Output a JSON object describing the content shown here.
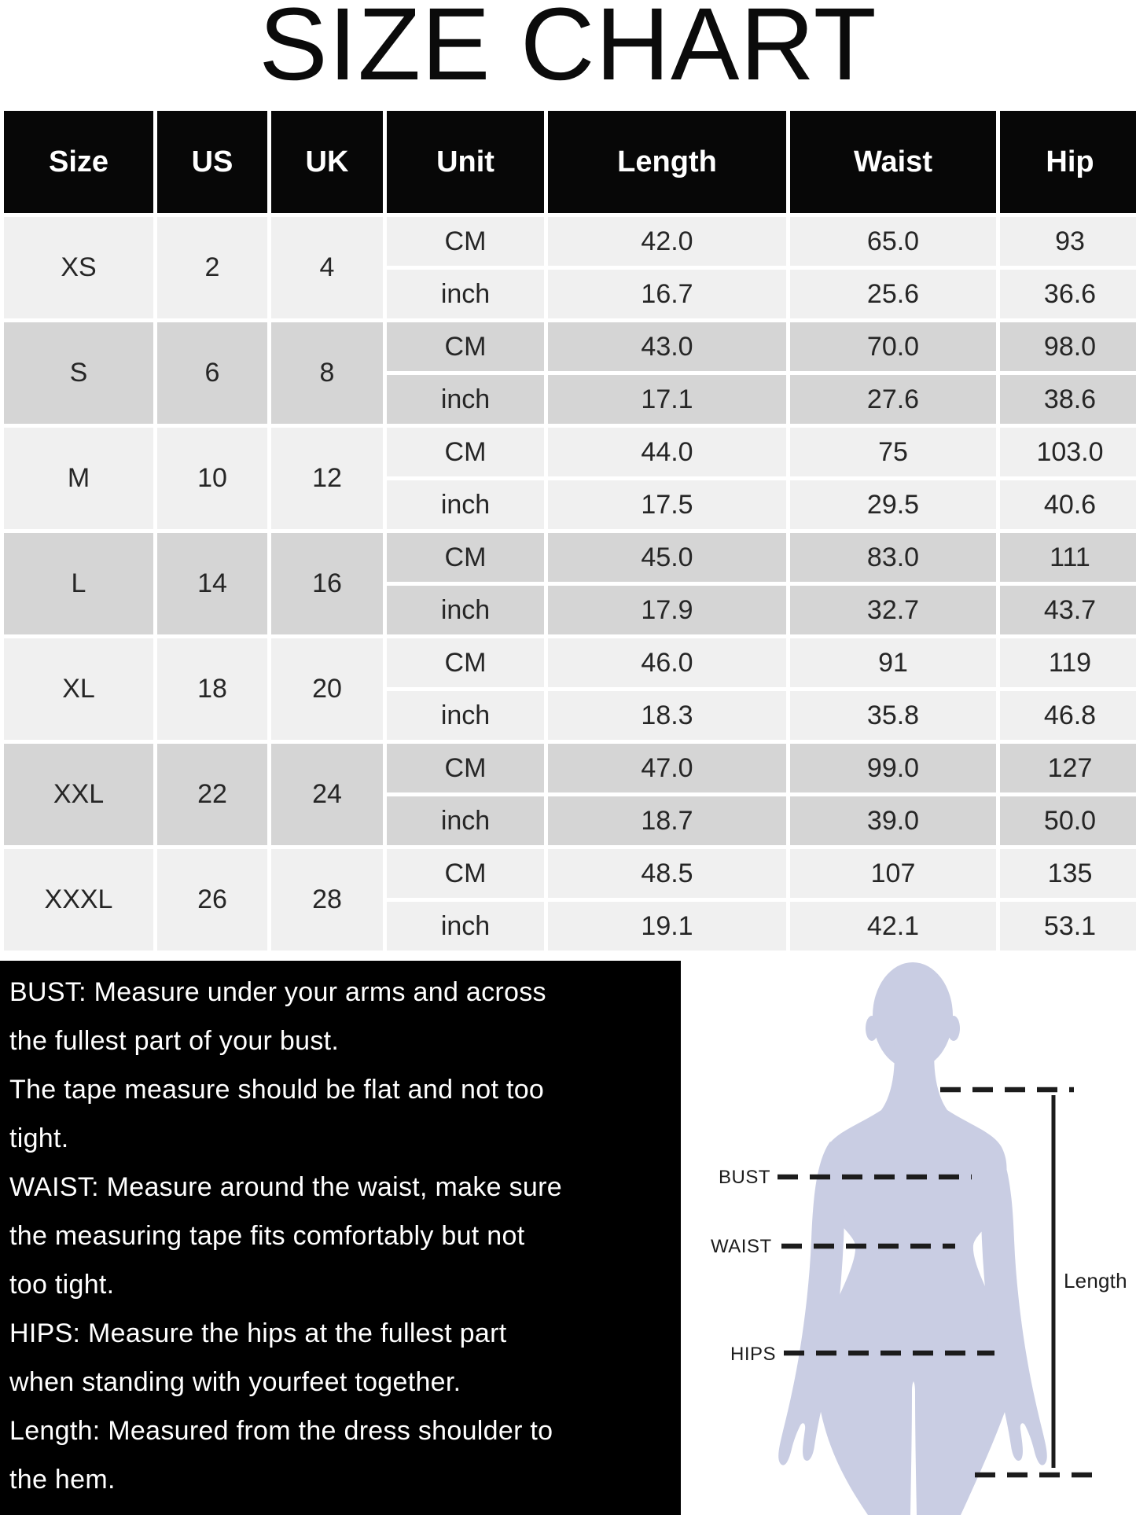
{
  "title": "SIZE CHART",
  "chart_data": {
    "type": "table",
    "title": "SIZE CHART",
    "columns": [
      "Size",
      "US",
      "UK",
      "Unit",
      "Length",
      "Waist",
      "Hip"
    ],
    "sizes": [
      {
        "size": "XS",
        "us": "2",
        "uk": "4",
        "measurements": [
          {
            "unit": "CM",
            "length": "42.0",
            "waist": "65.0",
            "hip": "93"
          },
          {
            "unit": "inch",
            "length": "16.7",
            "waist": "25.6",
            "hip": "36.6"
          }
        ]
      },
      {
        "size": "S",
        "us": "6",
        "uk": "8",
        "measurements": [
          {
            "unit": "CM",
            "length": "43.0",
            "waist": "70.0",
            "hip": "98.0"
          },
          {
            "unit": "inch",
            "length": "17.1",
            "waist": "27.6",
            "hip": "38.6"
          }
        ]
      },
      {
        "size": "M",
        "us": "10",
        "uk": "12",
        "measurements": [
          {
            "unit": "CM",
            "length": "44.0",
            "waist": "75",
            "hip": "103.0"
          },
          {
            "unit": "inch",
            "length": "17.5",
            "waist": "29.5",
            "hip": "40.6"
          }
        ]
      },
      {
        "size": "L",
        "us": "14",
        "uk": "16",
        "measurements": [
          {
            "unit": "CM",
            "length": "45.0",
            "waist": "83.0",
            "hip": "111"
          },
          {
            "unit": "inch",
            "length": "17.9",
            "waist": "32.7",
            "hip": "43.7"
          }
        ]
      },
      {
        "size": "XL",
        "us": "18",
        "uk": "20",
        "measurements": [
          {
            "unit": "CM",
            "length": "46.0",
            "waist": "91",
            "hip": "119"
          },
          {
            "unit": "inch",
            "length": "18.3",
            "waist": "35.8",
            "hip": "46.8"
          }
        ]
      },
      {
        "size": "XXL",
        "us": "22",
        "uk": "24",
        "measurements": [
          {
            "unit": "CM",
            "length": "47.0",
            "waist": "99.0",
            "hip": "127"
          },
          {
            "unit": "inch",
            "length": "18.7",
            "waist": "39.0",
            "hip": "50.0"
          }
        ]
      },
      {
        "size": "XXXL",
        "us": "26",
        "uk": "28",
        "measurements": [
          {
            "unit": "CM",
            "length": "48.5",
            "waist": "107",
            "hip": "135"
          },
          {
            "unit": "inch",
            "length": "19.1",
            "waist": "42.1",
            "hip": "53.1"
          }
        ]
      }
    ]
  },
  "instructions": {
    "lines": [
      "BUST: Measure under your arms and across",
      "the fullest part of your bust.",
      "The tape measure should be flat and not too",
      "tight.",
      "WAIST: Measure around the waist, make sure",
      "the measuring tape fits comfortably but not",
      "too tight.",
      "HIPS: Measure the hips at the fullest part",
      "when standing with yourfeet together.",
      "Length: Measured from the dress shoulder to",
      "the hem."
    ]
  },
  "figure": {
    "labels": {
      "bust": "BUST",
      "waist": "WAIST",
      "hips": "HIPS",
      "length": "Length"
    }
  },
  "colors": {
    "header_bg": "#070707",
    "header_text": "#ffffff",
    "row_light": "#f0f0f0",
    "row_dark": "#d5d5d5",
    "instructions_bg": "#000000",
    "instructions_text": "#ffffff",
    "silhouette": "#c9cde3",
    "annotation_line": "#1c1c1c"
  }
}
